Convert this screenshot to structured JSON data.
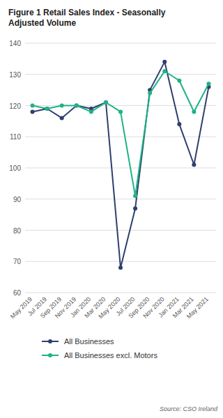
{
  "chart_data": {
    "type": "line",
    "title": "Figure 1 Retail Sales Index - Seasonally\nAdjusted Volume",
    "source": "Source: CSO Ireland",
    "categories": [
      "May 2019",
      "Jul 2019",
      "Sep 2019",
      "Nov 2019",
      "Jan 2020",
      "Mar 2020",
      "May 2020",
      "Jul 2020",
      "Sep 2020",
      "Nov 2020",
      "Jan 2021",
      "Mar 2021",
      "May 2021"
    ],
    "series": [
      {
        "name": "All Businesses",
        "color": "#2e3f6e",
        "marker": "circle",
        "values": [
          118,
          119,
          116,
          120,
          119,
          121,
          68,
          87,
          125,
          134,
          114,
          101,
          126
        ]
      },
      {
        "name": "All Businesses excl. Motors",
        "color": "#1db385",
        "marker": "circle",
        "values": [
          120,
          119,
          120,
          120,
          118,
          121,
          118,
          91,
          124,
          131,
          128,
          118,
          127
        ]
      }
    ],
    "ylim": [
      60,
      140
    ],
    "yticks": [
      60,
      70,
      80,
      90,
      100,
      110,
      120,
      130,
      140
    ],
    "grid": true,
    "legend": "bottom"
  }
}
